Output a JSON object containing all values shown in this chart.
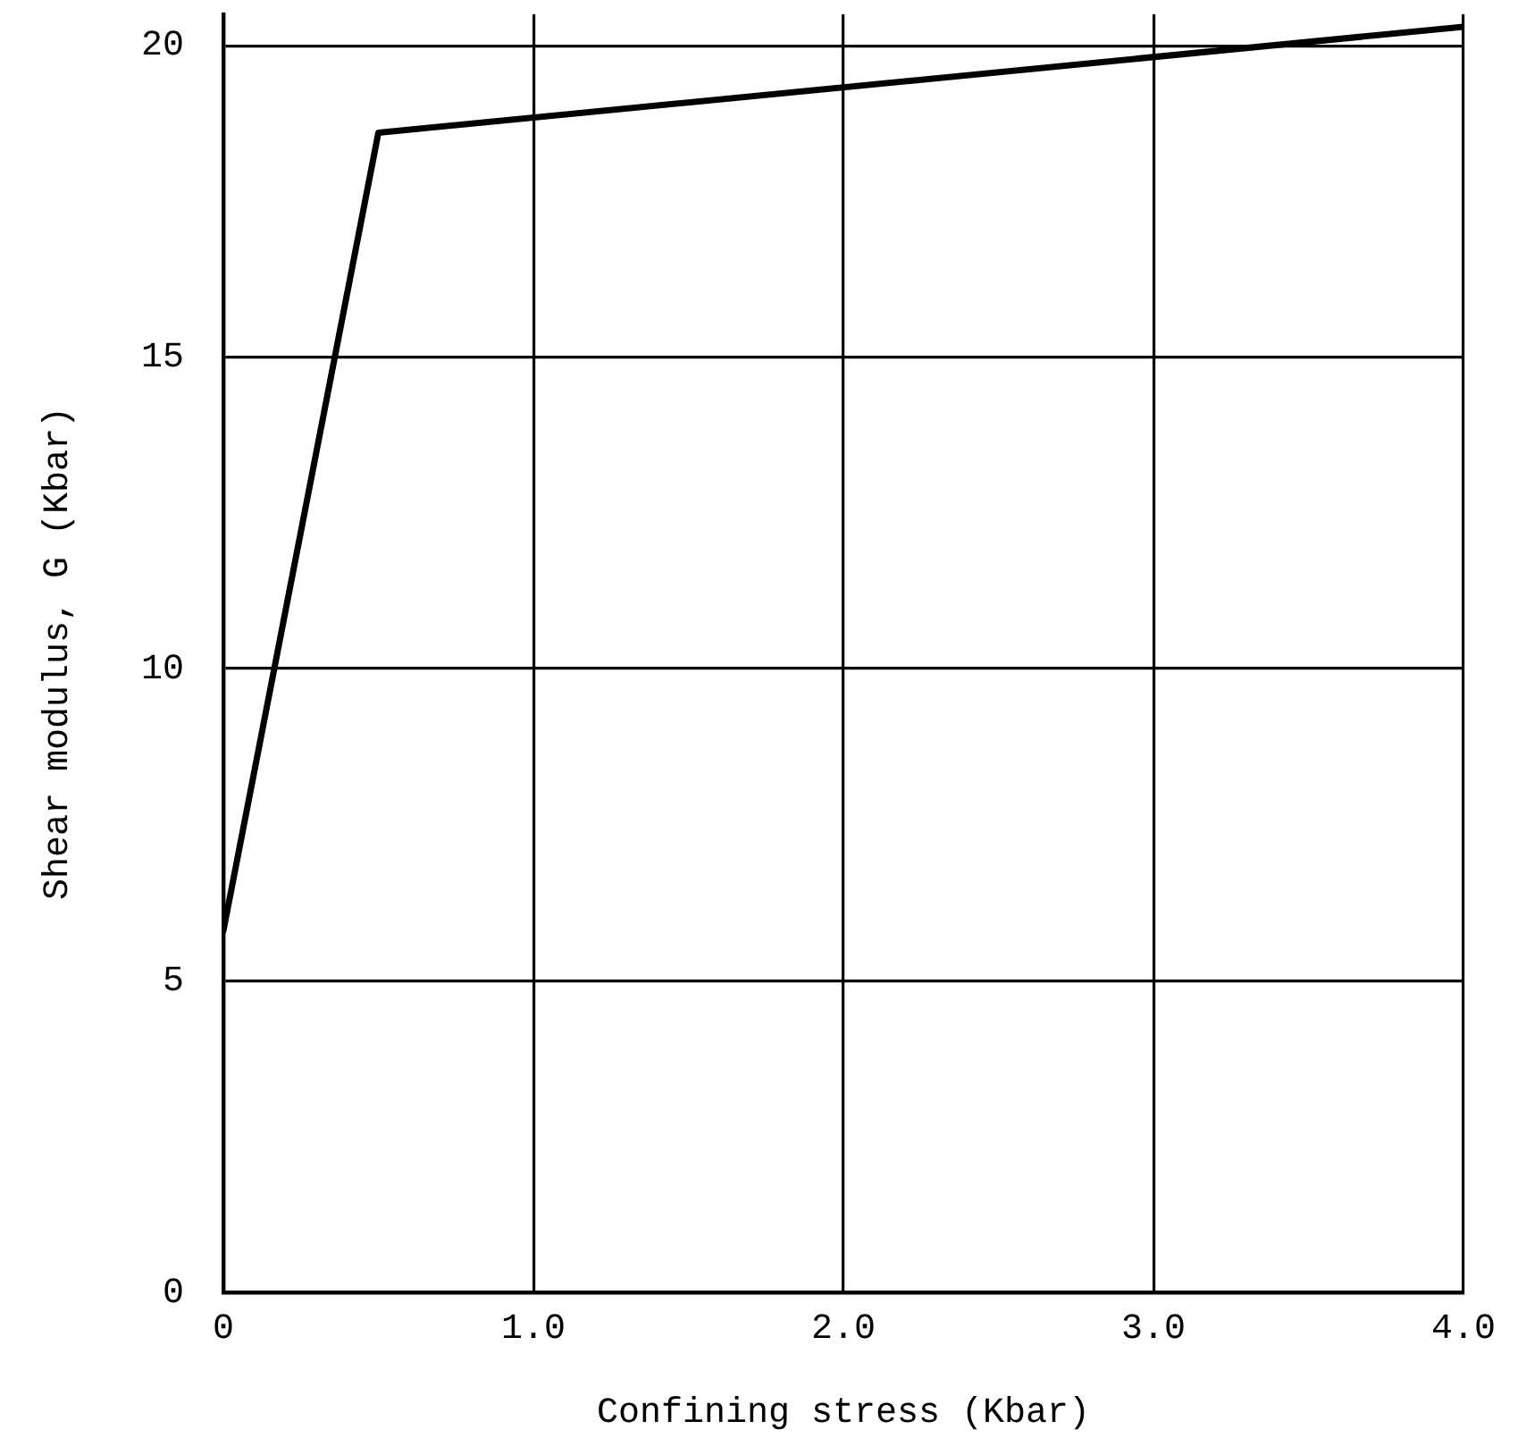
{
  "chart_data": {
    "type": "line",
    "xlabel": "Confining stress (Kbar)",
    "ylabel": "Shear modulus, G (Kbar)",
    "x": [
      0,
      0.5,
      4.0
    ],
    "values": [
      5.8,
      18.6,
      20.3
    ],
    "color": "#000000",
    "line_style": "solid",
    "xlim": [
      0,
      4.0
    ],
    "ylim": [
      0,
      20.5
    ],
    "xticks": [
      0,
      {
        "value": 1,
        "label": "1.0"
      },
      {
        "value": 2,
        "label": "2.0"
      },
      {
        "value": 3,
        "label": "3.0"
      },
      {
        "value": 4,
        "label": "4.0"
      }
    ],
    "yticks": [
      0,
      5,
      10,
      15,
      20
    ],
    "grid": true
  }
}
